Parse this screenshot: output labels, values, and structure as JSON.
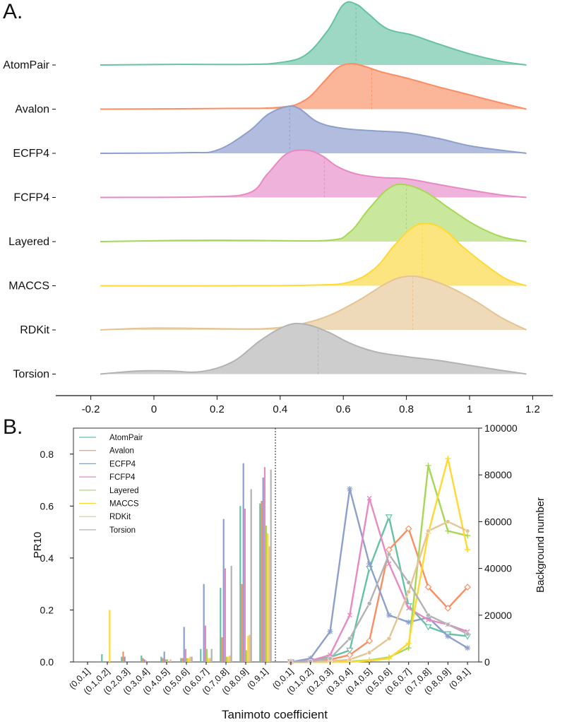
{
  "panels": {
    "a_label": "A.",
    "b_label": "B."
  },
  "chart_data": [
    {
      "type": "ridgeline-density",
      "title": "",
      "xlabel": "",
      "xlim": [
        -0.25,
        1.25
      ],
      "xticks": [
        -0.2,
        0,
        0.2,
        0.4,
        0.6,
        0.8,
        1,
        1.2
      ],
      "xtick_labels": [
        "-0.2",
        "0",
        "0.2",
        "0.4",
        "0.6",
        "0.8",
        "1",
        "1.2"
      ],
      "series": [
        {
          "name": "AtomPair",
          "color": "#66c2a5",
          "fill": "#9dd8c5",
          "median": 0.64,
          "points": [
            [
              -0.17,
              0.0
            ],
            [
              0.1,
              0.01
            ],
            [
              0.3,
              0.01
            ],
            [
              0.4,
              0.04
            ],
            [
              0.48,
              0.16
            ],
            [
              0.55,
              0.55
            ],
            [
              0.6,
              0.97
            ],
            [
              0.64,
              0.98
            ],
            [
              0.68,
              0.82
            ],
            [
              0.74,
              0.58
            ],
            [
              0.82,
              0.48
            ],
            [
              0.9,
              0.34
            ],
            [
              1.0,
              0.18
            ],
            [
              1.1,
              0.06
            ],
            [
              1.18,
              0.0
            ]
          ]
        },
        {
          "name": "Avalon",
          "color": "#fc8d62",
          "fill": "#fbb599",
          "median": 0.69,
          "points": [
            [
              -0.17,
              0.0
            ],
            [
              0.2,
              0.01
            ],
            [
              0.4,
              0.03
            ],
            [
              0.48,
              0.15
            ],
            [
              0.54,
              0.45
            ],
            [
              0.58,
              0.66
            ],
            [
              0.62,
              0.73
            ],
            [
              0.66,
              0.7
            ],
            [
              0.72,
              0.6
            ],
            [
              0.8,
              0.5
            ],
            [
              0.9,
              0.36
            ],
            [
              1.0,
              0.23
            ],
            [
              1.1,
              0.1
            ],
            [
              1.18,
              0.0
            ]
          ]
        },
        {
          "name": "ECFP4",
          "color": "#8da0cb",
          "fill": "#b2bcde",
          "median": 0.43,
          "points": [
            [
              -0.17,
              0.0
            ],
            [
              0.1,
              0.01
            ],
            [
              0.2,
              0.05
            ],
            [
              0.3,
              0.35
            ],
            [
              0.36,
              0.62
            ],
            [
              0.42,
              0.75
            ],
            [
              0.46,
              0.72
            ],
            [
              0.52,
              0.5
            ],
            [
              0.6,
              0.4
            ],
            [
              0.7,
              0.36
            ],
            [
              0.8,
              0.33
            ],
            [
              0.9,
              0.24
            ],
            [
              1.0,
              0.12
            ],
            [
              1.1,
              0.05
            ],
            [
              1.18,
              0.0
            ]
          ]
        },
        {
          "name": "FCFP4",
          "color": "#e78ac3",
          "fill": "#efb2db",
          "median": 0.54,
          "points": [
            [
              -0.17,
              0.0
            ],
            [
              0.15,
              0.01
            ],
            [
              0.3,
              0.07
            ],
            [
              0.36,
              0.38
            ],
            [
              0.42,
              0.7
            ],
            [
              0.48,
              0.76
            ],
            [
              0.53,
              0.68
            ],
            [
              0.58,
              0.5
            ],
            [
              0.64,
              0.38
            ],
            [
              0.72,
              0.32
            ],
            [
              0.8,
              0.3
            ],
            [
              0.9,
              0.21
            ],
            [
              1.0,
              0.12
            ],
            [
              1.1,
              0.04
            ],
            [
              1.18,
              0.0
            ]
          ]
        },
        {
          "name": "Layered",
          "color": "#a6d854",
          "fill": "#c9e89e",
          "median": 0.8,
          "points": [
            [
              -0.17,
              0.0
            ],
            [
              0.1,
              0.02
            ],
            [
              0.3,
              0.02
            ],
            [
              0.55,
              0.02
            ],
            [
              0.62,
              0.15
            ],
            [
              0.68,
              0.52
            ],
            [
              0.74,
              0.84
            ],
            [
              0.79,
              0.92
            ],
            [
              0.86,
              0.8
            ],
            [
              0.94,
              0.52
            ],
            [
              1.02,
              0.26
            ],
            [
              1.1,
              0.08
            ],
            [
              1.18,
              0.0
            ]
          ]
        },
        {
          "name": "MACCS",
          "color": "#ffd92f",
          "fill": "#fce47f",
          "median": 0.85,
          "points": [
            [
              -0.17,
              0.0
            ],
            [
              0.2,
              0.0
            ],
            [
              0.5,
              0.01
            ],
            [
              0.62,
              0.06
            ],
            [
              0.7,
              0.28
            ],
            [
              0.76,
              0.64
            ],
            [
              0.82,
              0.94
            ],
            [
              0.87,
              1.0
            ],
            [
              0.92,
              0.9
            ],
            [
              0.98,
              0.62
            ],
            [
              1.06,
              0.3
            ],
            [
              1.12,
              0.1
            ],
            [
              1.18,
              0.0
            ]
          ]
        },
        {
          "name": "RDKit",
          "color": "#e5c494",
          "fill": "#eed9b8",
          "median": 0.82,
          "points": [
            [
              -0.17,
              0.0
            ],
            [
              0.0,
              0.03
            ],
            [
              0.2,
              0.02
            ],
            [
              0.35,
              0.02
            ],
            [
              0.45,
              0.08
            ],
            [
              0.55,
              0.22
            ],
            [
              0.65,
              0.48
            ],
            [
              0.74,
              0.76
            ],
            [
              0.8,
              0.86
            ],
            [
              0.86,
              0.83
            ],
            [
              0.94,
              0.68
            ],
            [
              1.02,
              0.46
            ],
            [
              1.1,
              0.2
            ],
            [
              1.18,
              0.0
            ]
          ]
        },
        {
          "name": "Torsion",
          "color": "#b3b3b3",
          "fill": "#cdcdcd",
          "median": 0.52,
          "points": [
            [
              -0.17,
              0.0
            ],
            [
              -0.05,
              0.05
            ],
            [
              0.05,
              0.05
            ],
            [
              0.15,
              0.04
            ],
            [
              0.25,
              0.2
            ],
            [
              0.34,
              0.55
            ],
            [
              0.42,
              0.78
            ],
            [
              0.48,
              0.8
            ],
            [
              0.55,
              0.68
            ],
            [
              0.62,
              0.5
            ],
            [
              0.7,
              0.36
            ],
            [
              0.8,
              0.28
            ],
            [
              0.9,
              0.22
            ],
            [
              1.0,
              0.14
            ],
            [
              1.1,
              0.06
            ],
            [
              1.18,
              0.0
            ]
          ]
        }
      ]
    },
    {
      "type": "bar+line",
      "xlabel": "Tanimoto coefficient",
      "ylabel": "PR10",
      "y2label": "Background number",
      "ylim": [
        0,
        0.9
      ],
      "yticks": [
        0.0,
        0.2,
        0.4,
        0.6,
        0.8
      ],
      "ytick_labels": [
        "0.0",
        "0.2",
        "0.4",
        "0.6",
        "0.8"
      ],
      "y2lim": [
        0,
        100000
      ],
      "y2ticks": [
        0,
        20000,
        40000,
        60000,
        80000,
        100000
      ],
      "y2tick_labels": [
        "0",
        "20000",
        "40000",
        "60000",
        "80000",
        "100000"
      ],
      "categories": [
        "(0,0.1]",
        "(0.1,0.2]",
        "(0.2,0.3]",
        "(0.3,0.4]",
        "(0.4,0.5]",
        "(0.5,0.6]",
        "(0.6,0.7]",
        "(0.7,0.8]",
        "(0.8,0.9]",
        "(0.9,1]"
      ],
      "bar_series": [
        {
          "name": "AtomPair",
          "color": "#66c2a5",
          "values": [
            0.0,
            0.03,
            0.02,
            0.025,
            0.02,
            0.015,
            0.05,
            0.285,
            0.6,
            0.61
          ]
        },
        {
          "name": "Avalon",
          "color": "#fc8d62",
          "values": [
            0.0,
            0.0,
            0.04,
            0.015,
            0.015,
            0.015,
            0.0,
            0.095,
            0.3,
            0.62
          ]
        },
        {
          "name": "ECFP4",
          "color": "#8da0cb",
          "values": [
            0.0,
            0.0,
            0.02,
            0.01,
            0.04,
            0.135,
            0.3,
            0.55,
            0.765,
            0.71
          ]
        },
        {
          "name": "FCFP4",
          "color": "#e78ac3",
          "values": [
            0.0,
            0.0,
            0.0,
            0.005,
            0.01,
            0.05,
            0.14,
            0.36,
            0.59,
            0.75
          ]
        },
        {
          "name": "Layered",
          "color": "#a6d854",
          "values": [
            0.0,
            0.0,
            0.0,
            0.0,
            0.01,
            0.015,
            0.05,
            0.02,
            0.045,
            0.525
          ]
        },
        {
          "name": "MACCS",
          "color": "#ffd92f",
          "values": [
            0.0,
            0.2,
            0.0,
            0.0,
            0.0,
            0.015,
            0.015,
            0.02,
            0.1,
            0.495
          ]
        },
        {
          "name": "RDKit",
          "color": "#e5c494",
          "values": [
            0.0,
            0.0,
            0.0,
            0.0,
            0.01,
            0.02,
            0.015,
            0.025,
            0.105,
            0.445
          ]
        },
        {
          "name": "Torsion",
          "color": "#b3b3b3",
          "values": [
            0.0,
            0.0,
            0.0,
            0.0,
            0.0,
            0.02,
            0.05,
            0.37,
            0.665,
            0.74
          ]
        }
      ],
      "line_series": [
        {
          "name": "AtomPair",
          "color": "#66c2a5",
          "marker": "v",
          "values": [
            0,
            500,
            2000,
            5000,
            40000,
            62000,
            24000,
            15000,
            12000,
            11000
          ]
        },
        {
          "name": "Avalon",
          "color": "#fc8d62",
          "marker": "d",
          "values": [
            0,
            300,
            1000,
            3000,
            9000,
            48000,
            57000,
            32000,
            23000,
            32000
          ]
        },
        {
          "name": "ECFP4",
          "color": "#8da0cb",
          "marker": "*",
          "values": [
            0,
            1500,
            13000,
            74000,
            42000,
            20000,
            17000,
            19000,
            11000,
            6000
          ]
        },
        {
          "name": "FCFP4",
          "color": "#e78ac3",
          "marker": "x",
          "values": [
            0,
            500,
            3000,
            20000,
            70000,
            42000,
            23000,
            18000,
            16000,
            13000
          ]
        },
        {
          "name": "Layered",
          "color": "#a6d854",
          "marker": "+",
          "values": [
            0,
            0,
            0,
            200,
            800,
            2000,
            6000,
            84000,
            56000,
            54000
          ]
        },
        {
          "name": "MACCS",
          "color": "#ffd92f",
          "marker": "+",
          "values": [
            0,
            0,
            0,
            0,
            500,
            1500,
            8000,
            55000,
            87000,
            48000
          ]
        },
        {
          "name": "RDKit",
          "color": "#e5c494",
          "marker": "o",
          "values": [
            0,
            0,
            300,
            1000,
            4000,
            10000,
            30000,
            56000,
            60000,
            56000
          ]
        },
        {
          "name": "Torsion",
          "color": "#b3b3b3",
          "marker": "o",
          "values": [
            0,
            200,
            1500,
            10000,
            25000,
            46000,
            34000,
            20000,
            16000,
            12000
          ]
        }
      ]
    }
  ]
}
